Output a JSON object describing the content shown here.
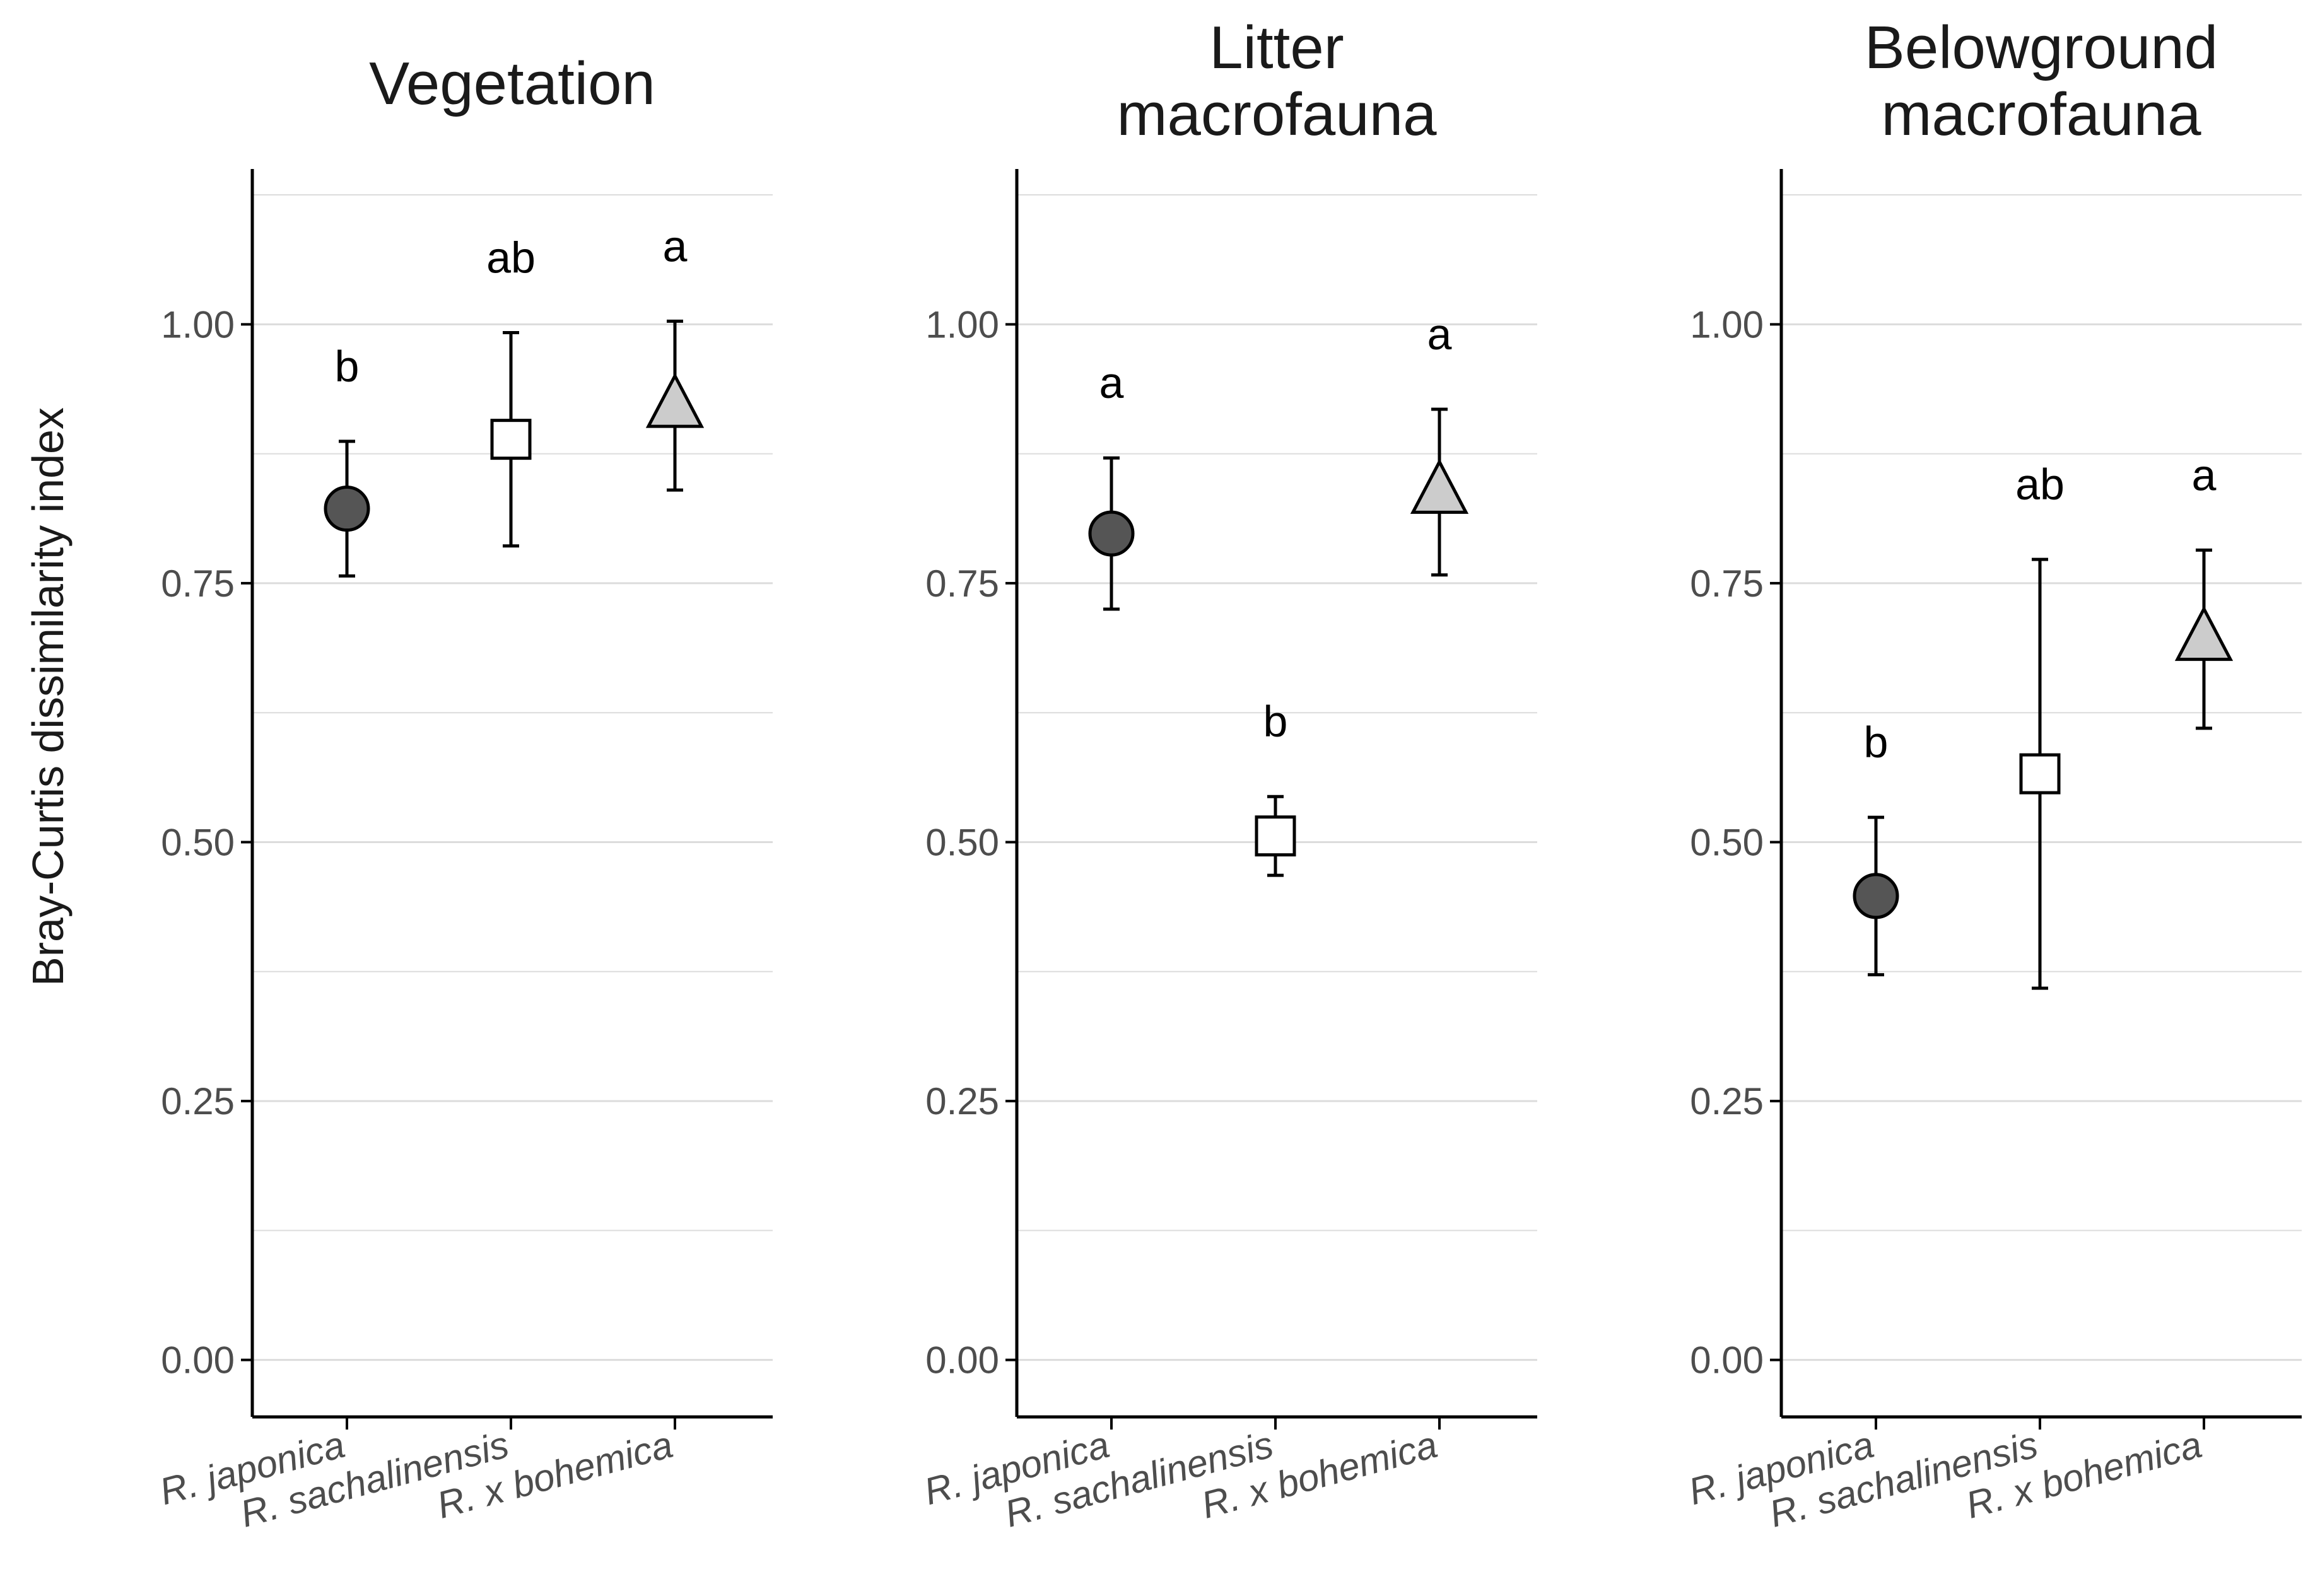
{
  "chart_data": [
    {
      "type": "scatter",
      "title": [
        "Vegetation"
      ],
      "ylabel": "Bray-Curtis dissimilarity index",
      "categories": [
        "R. japonica",
        "R. sachalinensis",
        "R. x bohemica"
      ],
      "yticks": [
        "0.00",
        "0.25",
        "0.50",
        "0.75",
        "1.00"
      ],
      "ylim": [
        -0.055,
        1.15
      ],
      "grid": true,
      "points": [
        {
          "category": "R. japonica",
          "mean": 0.822,
          "lower": 0.757,
          "upper": 0.887,
          "letter": "b",
          "marker": "circle"
        },
        {
          "category": "R. sachalinensis",
          "mean": 0.889,
          "lower": 0.786,
          "upper": 0.992,
          "letter": "ab",
          "marker": "square"
        },
        {
          "category": "R. x bohemica",
          "mean": 0.921,
          "lower": 0.84,
          "upper": 1.003,
          "letter": "a",
          "marker": "triangle"
        }
      ]
    },
    {
      "type": "scatter",
      "title": [
        "Litter",
        "macrofauna"
      ],
      "categories": [
        "R. japonica",
        "R. sachalinensis",
        "R. x bohemica"
      ],
      "yticks": [
        "0.00",
        "0.25",
        "0.50",
        "0.75",
        "1.00"
      ],
      "ylim": [
        -0.055,
        1.15
      ],
      "grid": true,
      "points": [
        {
          "category": "R. japonica",
          "mean": 0.798,
          "lower": 0.725,
          "upper": 0.871,
          "letter": "a",
          "marker": "circle"
        },
        {
          "category": "R. sachalinensis",
          "mean": 0.506,
          "lower": 0.468,
          "upper": 0.544,
          "letter": "b",
          "marker": "square"
        },
        {
          "category": "R. x bohemica",
          "mean": 0.838,
          "lower": 0.758,
          "upper": 0.918,
          "letter": "a",
          "marker": "triangle"
        }
      ]
    },
    {
      "type": "scatter",
      "title": [
        "Belowground",
        "macrofauna"
      ],
      "categories": [
        "R. japonica",
        "R. sachalinensis",
        "R. x bohemica"
      ],
      "yticks": [
        "0.00",
        "0.25",
        "0.50",
        "0.75",
        "1.00"
      ],
      "ylim": [
        -0.055,
        1.15
      ],
      "grid": true,
      "points": [
        {
          "category": "R. japonica",
          "mean": 0.448,
          "lower": 0.372,
          "upper": 0.524,
          "letter": "b",
          "marker": "circle"
        },
        {
          "category": "R. sachalinensis",
          "mean": 0.566,
          "lower": 0.359,
          "upper": 0.773,
          "letter": "ab",
          "marker": "square"
        },
        {
          "category": "R. x bohemica",
          "mean": 0.696,
          "lower": 0.61,
          "upper": 0.782,
          "letter": "a",
          "marker": "triangle"
        }
      ]
    }
  ],
  "colors": {
    "circle": "#555555",
    "square": "#ffffff",
    "triangle": "#cccccc",
    "axis": "#000000",
    "grid": "#dcdcdc",
    "tick_text": "#4d4d4d"
  }
}
